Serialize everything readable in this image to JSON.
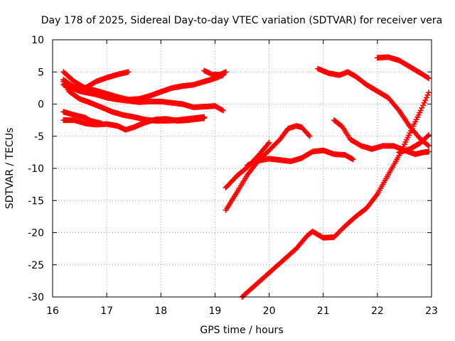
{
  "chart_data": {
    "type": "scatter",
    "title": "Day 178 of 2025, Sidereal Day-to-day VTEC variation (SDTVAR) for receiver vera",
    "xlabel": "GPS time / hours",
    "ylabel": "SDTVAR / TECUs",
    "xlim": [
      16,
      23
    ],
    "ylim": [
      -30,
      10
    ],
    "x_ticks": [
      "16",
      "17",
      "18",
      "19",
      "20",
      "21",
      "22",
      "23"
    ],
    "y_ticks": [
      "10",
      "5",
      "0",
      "-5",
      "-10",
      "-15",
      "-20",
      "-25",
      "-30"
    ],
    "grid": true,
    "marker": "plus",
    "series_color": "#ff0000",
    "series": [
      {
        "points": [
          [
            16.2,
            3.8
          ],
          [
            16.4,
            2.6
          ],
          [
            16.6,
            2.5
          ],
          [
            16.8,
            3.5
          ],
          [
            17.0,
            4.1
          ],
          [
            17.2,
            4.6
          ],
          [
            17.4,
            5.0
          ]
        ]
      },
      {
        "points": [
          [
            16.2,
            5.0
          ],
          [
            16.4,
            3.5
          ],
          [
            16.6,
            2.5
          ],
          [
            16.8,
            2.1
          ],
          [
            17.0,
            1.6
          ],
          [
            17.2,
            1.1
          ],
          [
            17.4,
            0.7
          ],
          [
            17.6,
            0.8
          ],
          [
            17.8,
            1.3
          ],
          [
            18.0,
            1.9
          ],
          [
            18.2,
            2.5
          ],
          [
            18.4,
            2.8
          ],
          [
            18.6,
            3.0
          ],
          [
            18.8,
            3.5
          ],
          [
            19.0,
            4.0
          ],
          [
            19.15,
            4.5
          ]
        ]
      },
      {
        "points": [
          [
            16.2,
            3.5
          ],
          [
            16.3,
            2.0
          ],
          [
            16.5,
            0.8
          ],
          [
            16.7,
            0.2
          ],
          [
            16.9,
            -0.5
          ],
          [
            17.1,
            -1.2
          ],
          [
            17.3,
            -1.7
          ],
          [
            17.5,
            -2.0
          ],
          [
            17.7,
            -2.4
          ],
          [
            17.9,
            -2.6
          ],
          [
            18.1,
            -2.6
          ],
          [
            18.3,
            -2.5
          ],
          [
            18.5,
            -2.3
          ],
          [
            18.8,
            -2.0
          ]
        ]
      },
      {
        "points": [
          [
            16.2,
            -2.5
          ],
          [
            16.4,
            -2.5
          ],
          [
            16.6,
            -3.0
          ],
          [
            16.8,
            -3.2
          ],
          [
            17.0,
            -3.1
          ],
          [
            17.2,
            -3.4
          ],
          [
            17.35,
            -4.0
          ],
          [
            17.5,
            -3.6
          ],
          [
            17.7,
            -2.9
          ],
          [
            17.9,
            -2.4
          ],
          [
            18.1,
            -2.3
          ],
          [
            18.3,
            -2.6
          ],
          [
            18.5,
            -2.5
          ],
          [
            18.8,
            -2.2
          ]
        ]
      },
      {
        "points": [
          [
            16.2,
            -1.2
          ],
          [
            16.4,
            -1.7
          ],
          [
            16.6,
            -2.1
          ],
          [
            16.7,
            -2.6
          ],
          [
            16.9,
            -3.0
          ]
        ]
      },
      {
        "points": [
          [
            16.2,
            3.0
          ],
          [
            16.5,
            2.0
          ],
          [
            16.8,
            1.5
          ],
          [
            17.0,
            1.0
          ],
          [
            17.2,
            0.7
          ],
          [
            17.4,
            0.5
          ],
          [
            17.6,
            0.3
          ],
          [
            17.8,
            0.4
          ],
          [
            18.0,
            0.4
          ],
          [
            18.2,
            0.2
          ],
          [
            18.4,
            0.0
          ],
          [
            18.6,
            -0.5
          ],
          [
            18.8,
            -0.4
          ],
          [
            19.0,
            -0.3
          ],
          [
            19.15,
            -1.0
          ]
        ]
      },
      {
        "points": [
          [
            18.8,
            5.2
          ],
          [
            18.95,
            4.6
          ],
          [
            19.1,
            4.6
          ],
          [
            19.2,
            5.0
          ]
        ]
      },
      {
        "points": [
          [
            19.2,
            -16.5
          ],
          [
            19.4,
            -13.8
          ],
          [
            19.6,
            -11.0
          ],
          [
            19.8,
            -8.8
          ],
          [
            20.0,
            -7.2
          ],
          [
            20.2,
            -5.5
          ],
          [
            20.35,
            -3.8
          ],
          [
            20.5,
            -3.4
          ],
          [
            20.6,
            -3.6
          ],
          [
            20.75,
            -5.0
          ]
        ]
      },
      {
        "points": [
          [
            19.2,
            -13.0
          ],
          [
            19.4,
            -11.2
          ],
          [
            19.6,
            -9.8
          ],
          [
            19.8,
            -8.0
          ],
          [
            20.0,
            -6.0
          ]
        ]
      },
      {
        "points": [
          [
            19.6,
            -9.5
          ],
          [
            19.8,
            -8.8
          ],
          [
            20.0,
            -8.5
          ],
          [
            20.2,
            -8.7
          ],
          [
            20.4,
            -8.9
          ],
          [
            20.6,
            -8.4
          ],
          [
            20.8,
            -7.4
          ],
          [
            21.0,
            -7.2
          ],
          [
            21.2,
            -7.8
          ],
          [
            21.4,
            -7.9
          ],
          [
            21.55,
            -8.6
          ]
        ]
      },
      {
        "points": [
          [
            20.9,
            5.5
          ],
          [
            21.1,
            4.8
          ],
          [
            21.3,
            4.5
          ],
          [
            21.45,
            5.0
          ],
          [
            21.6,
            4.3
          ],
          [
            21.8,
            3.0
          ],
          [
            22.0,
            2.0
          ],
          [
            22.2,
            1.0
          ],
          [
            22.4,
            -1.0
          ],
          [
            22.6,
            -3.5
          ],
          [
            22.8,
            -5.5
          ],
          [
            22.95,
            -6.5
          ]
        ]
      },
      {
        "points": [
          [
            21.2,
            -2.5
          ],
          [
            21.35,
            -3.5
          ],
          [
            21.5,
            -5.5
          ],
          [
            21.7,
            -6.5
          ],
          [
            21.9,
            -7.0
          ],
          [
            22.1,
            -6.5
          ],
          [
            22.3,
            -6.5
          ],
          [
            22.5,
            -7.2
          ],
          [
            22.7,
            -7.8
          ],
          [
            22.85,
            -7.5
          ],
          [
            22.95,
            -7.4
          ]
        ]
      },
      {
        "points": [
          [
            22.0,
            7.2
          ],
          [
            22.2,
            7.3
          ],
          [
            22.4,
            6.8
          ],
          [
            22.6,
            5.8
          ],
          [
            22.8,
            4.8
          ],
          [
            22.95,
            4.0
          ]
        ]
      },
      {
        "points": [
          [
            19.5,
            -30
          ],
          [
            19.7,
            -28.5
          ],
          [
            19.9,
            -27.0
          ],
          [
            20.1,
            -25.5
          ],
          [
            20.3,
            -24.0
          ],
          [
            20.5,
            -22.5
          ],
          [
            20.7,
            -20.5
          ],
          [
            20.8,
            -19.8
          ],
          [
            20.9,
            -20.3
          ],
          [
            21.0,
            -20.8
          ],
          [
            21.2,
            -20.7
          ],
          [
            21.4,
            -19.0
          ],
          [
            21.6,
            -17.5
          ],
          [
            21.8,
            -16.2
          ],
          [
            22.0,
            -14.0
          ],
          [
            22.2,
            -11.0
          ],
          [
            22.4,
            -8.0
          ],
          [
            22.6,
            -4.5
          ],
          [
            22.8,
            -1.0
          ],
          [
            22.95,
            1.8
          ]
        ]
      },
      {
        "points": [
          [
            22.4,
            -7.5
          ],
          [
            22.6,
            -7.0
          ],
          [
            22.8,
            -6.0
          ],
          [
            22.95,
            -4.8
          ]
        ]
      }
    ]
  }
}
